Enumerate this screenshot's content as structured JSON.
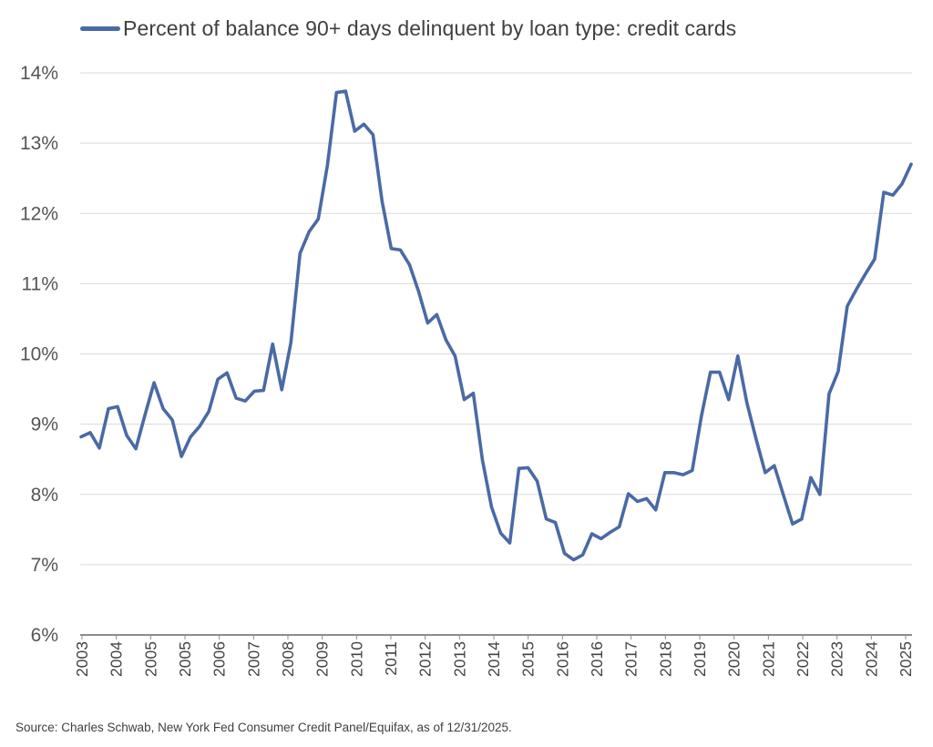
{
  "colors": {
    "line": "#4a6aa5",
    "grid": "#d9d9d9",
    "axis": "#8c8c8c"
  },
  "legend": {
    "label": "Percent of balance 90+ days delinquent by loan type: credit cards"
  },
  "source": "Source: Charles Schwab, New York Fed Consumer Credit Panel/Equifax, as of 12/31/2025.",
  "chart_data": {
    "type": "line",
    "title": "",
    "xlabel": "",
    "ylabel": "",
    "ylim": [
      6,
      14
    ],
    "yticks": [
      "6%",
      "7%",
      "8%",
      "9%",
      "10%",
      "11%",
      "12%",
      "13%",
      "14%"
    ],
    "x_tick_labels": [
      "2003",
      "2004",
      "2005",
      "2005",
      "2006",
      "2007",
      "2008",
      "2009",
      "2010",
      "2011",
      "2012",
      "2013",
      "2014",
      "2015",
      "2016",
      "2016",
      "2017",
      "2018",
      "2019",
      "2020",
      "2021",
      "2022",
      "2023",
      "2024",
      "2025"
    ],
    "grid": true,
    "legend_position": "top-left",
    "series": [
      {
        "name": "Percent of balance 90+ days delinquent by loan type: credit cards",
        "x_start": "2003-Q1",
        "frequency": "quarterly",
        "values": [
          8.82,
          8.88,
          8.66,
          9.22,
          9.25,
          8.84,
          8.65,
          9.13,
          9.59,
          9.22,
          9.06,
          8.54,
          8.82,
          8.97,
          9.18,
          9.64,
          9.73,
          9.37,
          9.33,
          9.47,
          9.48,
          10.14,
          9.49,
          10.16,
          11.43,
          11.74,
          11.92,
          12.68,
          13.72,
          13.74,
          13.17,
          13.27,
          13.12,
          12.17,
          11.5,
          11.48,
          11.27,
          10.89,
          10.44,
          10.56,
          10.2,
          9.97,
          9.35,
          9.44,
          8.49,
          7.82,
          7.45,
          7.31,
          8.37,
          8.38,
          8.19,
          7.65,
          7.6,
          7.16,
          7.07,
          7.14,
          7.44,
          7.37,
          7.46,
          7.54,
          8.01,
          7.9,
          7.94,
          7.78,
          8.31,
          8.31,
          8.28,
          8.34,
          9.11,
          9.74,
          9.74,
          9.35,
          9.97,
          9.3,
          8.79,
          8.31,
          8.41,
          7.99,
          7.58,
          7.65,
          8.24,
          8.0,
          9.43,
          9.75,
          10.68,
          10.92,
          11.14,
          11.35,
          12.3,
          12.26,
          12.42,
          12.7
        ]
      }
    ]
  }
}
